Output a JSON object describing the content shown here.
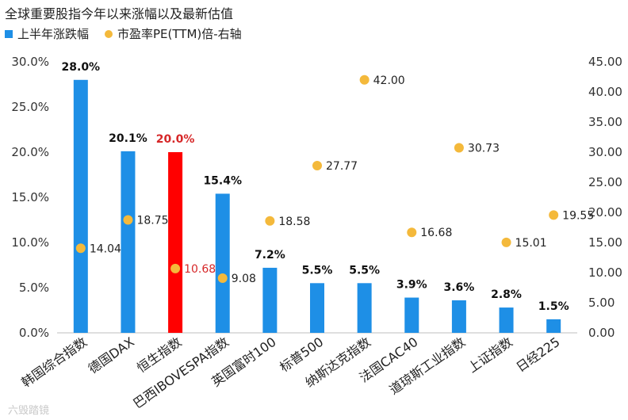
{
  "chart_data": {
    "type": "bar",
    "title": "全球重要股指今年以来涨幅以及最新估值",
    "categories": [
      "韩国综合指数",
      "德国DAX",
      "恒生指数",
      "巴西IBOVESPA指数",
      "英国富时100",
      "标普500",
      "纳斯达克指数",
      "法国CAC40",
      "道琼斯工业指数",
      "上证指数",
      "日经225"
    ],
    "series": [
      {
        "name": "上半年涨跌幅",
        "kind": "bar",
        "axis": "left",
        "values": [
          28.0,
          20.1,
          20.0,
          15.4,
          7.2,
          5.5,
          5.5,
          3.9,
          3.6,
          2.8,
          1.5
        ],
        "labels": [
          "28.0%",
          "20.1%",
          "20.0%",
          "15.4%",
          "7.2%",
          "5.5%",
          "5.5%",
          "3.9%",
          "3.6%",
          "2.8%",
          "1.5%"
        ],
        "color": "#1e8fe6",
        "highlight_index": 2,
        "highlight_color": "#ff0000"
      },
      {
        "name": "市盈率PE(TTM)倍-右轴",
        "kind": "scatter",
        "axis": "right",
        "values": [
          14.04,
          18.75,
          10.68,
          9.08,
          18.58,
          27.77,
          42.0,
          16.68,
          30.73,
          15.01,
          19.55
        ],
        "labels": [
          "14.04",
          "18.75",
          "10.68",
          "9.08",
          "18.58",
          "27.77",
          "42.00",
          "16.68",
          "30.73",
          "15.01",
          "19.55"
        ],
        "color": "#f4b93b"
      }
    ],
    "y_left": {
      "min": 0,
      "max": 30,
      "ticks": [
        "0.0%",
        "5.0%",
        "10.0%",
        "15.0%",
        "20.0%",
        "25.0%",
        "30.0%"
      ]
    },
    "y_right": {
      "min": 0,
      "max": 45,
      "ticks": [
        "0.00",
        "5.00",
        "10.00",
        "15.00",
        "20.00",
        "25.00",
        "30.00",
        "35.00",
        "40.00",
        "45.00"
      ]
    },
    "legend_position": "top-left",
    "label_highlight_color": "#d62728"
  },
  "watermark": "六毁踏镜"
}
